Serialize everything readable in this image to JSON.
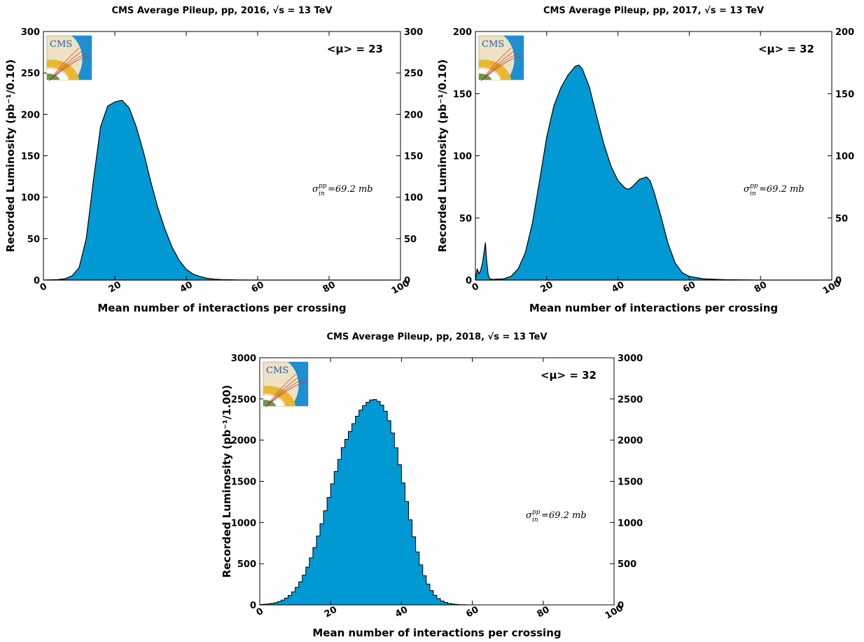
{
  "chart_data": [
    {
      "type": "area",
      "title": "CMS Average Pileup, pp, 2016, √s = 13 TeV",
      "xlabel": "Mean number of interactions per crossing",
      "ylabel": "Recorded Luminosity (pb⁻¹/0.10)",
      "xlim": [
        0,
        100
      ],
      "ylim": [
        0,
        300
      ],
      "x_ticks": [
        "0",
        "20",
        "40",
        "60",
        "80",
        "100"
      ],
      "y_ticks": [
        "0",
        "50",
        "100",
        "150",
        "200",
        "250",
        "300"
      ],
      "mean_label": "<μ> = 23",
      "xsec_label": "σ",
      "xsec_sup": "pp",
      "xsec_sub": "in",
      "xsec_value": "=69.2 mb",
      "logo": "CMS",
      "series": [
        {
          "color": "#0099d4",
          "x": [
            0,
            4,
            6,
            8,
            10,
            12,
            14,
            16,
            18,
            20,
            22,
            24,
            26,
            28,
            30,
            32,
            34,
            36,
            38,
            40,
            42,
            44,
            46,
            48,
            50,
            55,
            60,
            100
          ],
          "y": [
            0,
            0.5,
            1.5,
            5,
            15,
            50,
            120,
            185,
            210,
            215,
            217,
            208,
            185,
            155,
            120,
            88,
            62,
            40,
            24,
            13,
            7,
            4,
            2,
            1,
            0.5,
            0.1,
            0,
            0
          ]
        }
      ]
    },
    {
      "type": "area",
      "title": "CMS Average Pileup, pp, 2017, √s = 13 TeV",
      "xlabel": "Mean number of interactions per crossing",
      "ylabel": "Recorded Luminosity (pb⁻¹/0.10)",
      "xlim": [
        0,
        100
      ],
      "ylim": [
        0,
        200
      ],
      "x_ticks": [
        "0",
        "20",
        "40",
        "60",
        "80",
        "100"
      ],
      "y_ticks": [
        "0",
        "50",
        "100",
        "150",
        "200"
      ],
      "mean_label": "<μ> = 32",
      "xsec_label": "σ",
      "xsec_sup": "pp",
      "xsec_sub": "in",
      "xsec_value": "=69.2 mb",
      "logo": "CMS",
      "series": [
        {
          "color": "#0099d4",
          "x": [
            0,
            0.5,
            1,
            1.5,
            2,
            2.5,
            2.8,
            3.2,
            3.6,
            4,
            5,
            8,
            10,
            12,
            14,
            16,
            18,
            20,
            22,
            24,
            26,
            28,
            29,
            30,
            32,
            34,
            36,
            38,
            40,
            42,
            43,
            44,
            46,
            48,
            49,
            50,
            52,
            54,
            56,
            58,
            60,
            64,
            70,
            80,
            100
          ],
          "y": [
            0,
            9,
            5,
            8,
            14,
            24,
            30,
            14,
            4,
            1,
            0.5,
            1,
            3,
            9,
            22,
            46,
            80,
            115,
            140,
            155,
            165,
            172,
            173,
            170,
            155,
            132,
            110,
            92,
            80,
            74,
            73,
            75,
            81,
            83,
            80,
            72,
            52,
            30,
            14,
            6,
            3,
            1,
            0.3,
            0,
            0
          ]
        }
      ]
    },
    {
      "type": "bar",
      "title": "CMS Average Pileup, pp, 2018, √s = 13 TeV",
      "xlabel": "Mean number of interactions per crossing",
      "ylabel": "Recorded Luminosity (pb⁻¹/1.00)",
      "xlim": [
        0,
        100
      ],
      "ylim": [
        0,
        3000
      ],
      "x_ticks": [
        "0",
        "20",
        "40",
        "60",
        "80",
        "100"
      ],
      "y_ticks": [
        "0",
        "500",
        "1000",
        "1500",
        "2000",
        "2500",
        "3000"
      ],
      "mean_label": "<μ> = 32",
      "xsec_label": "σ",
      "xsec_sup": "pp",
      "xsec_sub": "in",
      "xsec_value": "=69.2 mb",
      "logo": "CMS",
      "series": [
        {
          "color": "#0099d4",
          "bin_width": 1,
          "x": [
            0,
            1,
            2,
            3,
            4,
            5,
            6,
            7,
            8,
            9,
            10,
            11,
            12,
            13,
            14,
            15,
            16,
            17,
            18,
            19,
            20,
            21,
            22,
            23,
            24,
            25,
            26,
            27,
            28,
            29,
            30,
            31,
            32,
            33,
            34,
            35,
            36,
            37,
            38,
            39,
            40,
            41,
            42,
            43,
            44,
            45,
            46,
            47,
            48,
            49,
            50,
            51,
            52,
            53,
            54,
            55,
            56,
            57,
            58,
            59,
            60,
            61,
            62,
            63,
            64
          ],
          "y": [
            5,
            8,
            12,
            18,
            27,
            40,
            58,
            83,
            115,
            158,
            213,
            280,
            362,
            459,
            571,
            697,
            836,
            986,
            1143,
            1305,
            1470,
            1620,
            1766,
            1910,
            2010,
            2105,
            2200,
            2290,
            2365,
            2420,
            2460,
            2488,
            2493,
            2471,
            2424,
            2351,
            2236,
            2087,
            1907,
            1702,
            1481,
            1255,
            1034,
            827,
            643,
            485,
            355,
            253,
            175,
            117,
            76,
            48,
            30,
            18,
            11,
            6,
            3.5,
            2,
            1,
            0.5,
            0.3,
            0.1,
            0.05,
            0,
            0
          ]
        }
      ]
    }
  ]
}
